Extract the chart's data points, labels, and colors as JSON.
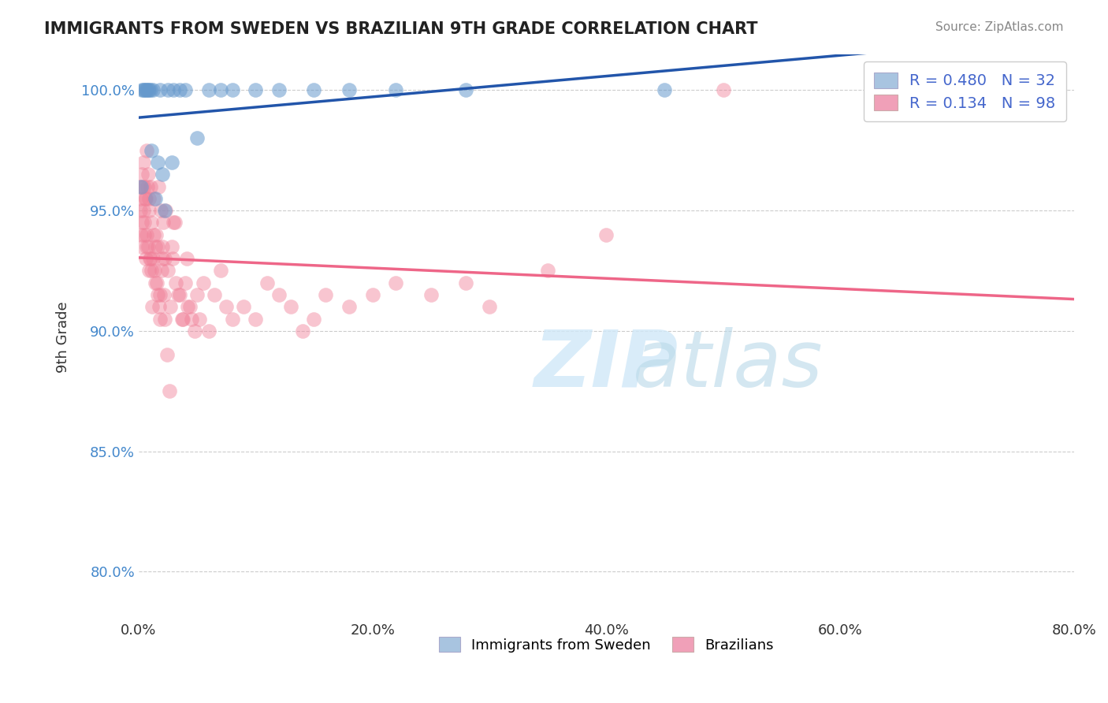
{
  "title": "IMMIGRANTS FROM SWEDEN VS BRAZILIAN 9TH GRADE CORRELATION CHART",
  "source": "Source: ZipAtlas.com",
  "xlabel_bottom": "",
  "ylabel": "9th Grade",
  "x_tick_labels": [
    "0.0%",
    "20.0%",
    "40.0%",
    "60.0%",
    "80.0%"
  ],
  "x_tick_values": [
    0.0,
    20.0,
    40.0,
    60.0,
    80.0
  ],
  "y_tick_labels": [
    "80.0%",
    "85.0%",
    "90.0%",
    "95.0%",
    "100.0%"
  ],
  "y_tick_values": [
    80.0,
    85.0,
    90.0,
    95.0,
    100.0
  ],
  "xlim": [
    0.0,
    80.0
  ],
  "ylim": [
    78.0,
    101.5
  ],
  "legend_items": [
    {
      "label": "Immigrants from Sweden",
      "color": "#a8c4e0"
    },
    {
      "label": "Brazilians",
      "color": "#f0a0b8"
    }
  ],
  "r_blue": 0.48,
  "n_blue": 32,
  "r_pink": 0.134,
  "n_pink": 98,
  "blue_color": "#6699cc",
  "pink_color": "#f08098",
  "blue_line_color": "#2255aa",
  "pink_line_color": "#ee6688",
  "watermark": "ZIPatlas",
  "watermark_color": "#d0e8f8",
  "blue_scatter_x": [
    0.2,
    0.3,
    0.4,
    0.5,
    0.6,
    0.7,
    0.8,
    0.9,
    1.0,
    1.1,
    1.2,
    1.4,
    1.6,
    1.8,
    2.0,
    2.2,
    2.5,
    2.8,
    3.0,
    3.5,
    4.0,
    5.0,
    6.0,
    7.0,
    8.0,
    10.0,
    12.0,
    15.0,
    18.0,
    22.0,
    28.0,
    45.0
  ],
  "blue_scatter_y": [
    96.0,
    100.0,
    100.0,
    100.0,
    100.0,
    100.0,
    100.0,
    100.0,
    100.0,
    97.5,
    100.0,
    95.5,
    97.0,
    100.0,
    96.5,
    95.0,
    100.0,
    97.0,
    100.0,
    100.0,
    100.0,
    98.0,
    100.0,
    100.0,
    100.0,
    100.0,
    100.0,
    100.0,
    100.0,
    100.0,
    100.0,
    100.0
  ],
  "pink_scatter_x": [
    0.1,
    0.2,
    0.2,
    0.3,
    0.3,
    0.4,
    0.4,
    0.5,
    0.5,
    0.6,
    0.6,
    0.7,
    0.7,
    0.8,
    0.8,
    0.9,
    0.9,
    1.0,
    1.0,
    1.1,
    1.2,
    1.3,
    1.4,
    1.5,
    1.6,
    1.7,
    1.8,
    1.9,
    2.0,
    2.1,
    2.2,
    2.3,
    2.5,
    2.7,
    2.9,
    3.0,
    3.2,
    3.5,
    3.8,
    4.0,
    4.2,
    4.5,
    5.0,
    5.5,
    6.0,
    6.5,
    7.0,
    7.5,
    8.0,
    9.0,
    10.0,
    11.0,
    12.0,
    13.0,
    14.0,
    15.0,
    16.0,
    18.0,
    20.0,
    22.0,
    25.0,
    28.0,
    30.0,
    35.0,
    40.0,
    50.0,
    0.15,
    0.25,
    0.35,
    0.45,
    0.55,
    0.65,
    0.75,
    0.85,
    0.95,
    1.05,
    1.15,
    1.25,
    1.35,
    1.45,
    1.55,
    1.65,
    1.75,
    1.85,
    1.95,
    2.05,
    2.15,
    2.25,
    2.45,
    2.65,
    2.85,
    3.1,
    3.4,
    3.7,
    4.1,
    4.4,
    4.8,
    5.2
  ],
  "pink_scatter_y": [
    96.0,
    95.5,
    94.0,
    93.5,
    96.5,
    95.0,
    97.0,
    94.5,
    96.0,
    93.0,
    95.5,
    94.0,
    97.5,
    93.5,
    96.5,
    92.5,
    95.0,
    93.0,
    96.0,
    94.5,
    93.0,
    95.5,
    92.0,
    94.0,
    93.5,
    96.0,
    91.5,
    95.0,
    93.5,
    94.5,
    93.0,
    95.0,
    92.5,
    91.0,
    93.0,
    94.5,
    92.0,
    91.5,
    90.5,
    92.0,
    91.0,
    90.5,
    91.5,
    92.0,
    90.0,
    91.5,
    92.5,
    91.0,
    90.5,
    91.0,
    90.5,
    92.0,
    91.5,
    91.0,
    90.0,
    90.5,
    91.5,
    91.0,
    91.5,
    92.0,
    91.5,
    92.0,
    91.0,
    92.5,
    94.0,
    100.0,
    95.0,
    94.5,
    96.0,
    94.0,
    95.5,
    93.5,
    96.0,
    95.5,
    93.0,
    92.5,
    91.0,
    94.0,
    92.5,
    93.5,
    92.0,
    91.5,
    91.0,
    90.5,
    92.5,
    93.0,
    91.5,
    90.5,
    89.0,
    87.5,
    93.5,
    94.5,
    91.5,
    90.5,
    93.0,
    91.0,
    90.0,
    90.5
  ]
}
